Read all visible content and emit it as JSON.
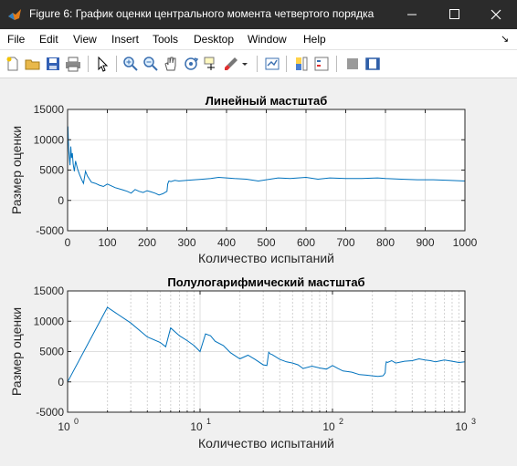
{
  "window": {
    "title": "Figure 6: График оценки центрального момента четвертого порядка",
    "controls": [
      "minimize",
      "maximize",
      "close"
    ]
  },
  "menu": {
    "items": [
      {
        "label": "File"
      },
      {
        "label": "Edit"
      },
      {
        "label": "View"
      },
      {
        "label": "Insert"
      },
      {
        "label": "Tools"
      },
      {
        "label": "Desktop"
      },
      {
        "label": "Window"
      },
      {
        "label": "Help"
      }
    ],
    "dock_arrow": "↘"
  },
  "toolbar": {
    "icons": [
      "new-figure-icon",
      "open-folder-icon",
      "save-icon",
      "print-icon",
      "pointer-icon",
      "zoom-in-icon",
      "zoom-out-icon",
      "pan-hand-icon",
      "rotate-3d-icon",
      "data-cursor-icon",
      "brush-icon",
      "brush-dropdown-icon",
      "link-plot-icon",
      "colorbar-icon",
      "legend-icon",
      "hide-plot-tools-icon",
      "show-plot-tools-icon"
    ]
  },
  "colors": {
    "line": "#0072bd",
    "grid": "#dfdfdf",
    "axes_bg": "#ffffff",
    "figure_bg": "#f0f0f0"
  },
  "chart_data": [
    {
      "type": "line",
      "title": "Линейный мастштаб",
      "xlabel": "Количество испытаний",
      "ylabel": "Размер оценки",
      "xlim": [
        0,
        1000
      ],
      "ylim": [
        -5000,
        15000
      ],
      "xticks": [
        0,
        100,
        200,
        300,
        400,
        500,
        600,
        700,
        800,
        900,
        1000
      ],
      "yticks": [
        -5000,
        0,
        5000,
        10000,
        15000
      ],
      "xscale": "linear",
      "grid": true,
      "series": [
        {
          "x": [
            1,
            2,
            3,
            4,
            5,
            6,
            8,
            10,
            12,
            14,
            17,
            20,
            25,
            30,
            35,
            40,
            45,
            50,
            60,
            70,
            80,
            90,
            100,
            120,
            140,
            150,
            160,
            170,
            180,
            190,
            200,
            210,
            220,
            230,
            240,
            245,
            250,
            252,
            255,
            260,
            270,
            280,
            300,
            320,
            340,
            360,
            380,
            400,
            420,
            450,
            480,
            500,
            530,
            560,
            600,
            630,
            660,
            700,
            740,
            780,
            800,
            840,
            880,
            920,
            960,
            1000
          ],
          "y": [
            12200,
            9700,
            8100,
            7500,
            6500,
            5800,
            8900,
            7000,
            7800,
            6000,
            4800,
            6500,
            5200,
            4300,
            3500,
            2800,
            4800,
            4000,
            3000,
            2800,
            2500,
            2300,
            2700,
            2100,
            1700,
            1500,
            1200,
            1800,
            1500,
            1300,
            1600,
            1400,
            1200,
            900,
            1100,
            1300,
            1500,
            2700,
            3200,
            3100,
            3300,
            3200,
            3300,
            3400,
            3500,
            3600,
            3800,
            3700,
            3600,
            3500,
            3200,
            3400,
            3700,
            3600,
            3800,
            3500,
            3700,
            3600,
            3600,
            3700,
            3600,
            3500,
            3400,
            3400,
            3300,
            3200
          ]
        }
      ]
    },
    {
      "type": "line",
      "title": "Полулогарифмический мастштаб",
      "xlabel": "Количество испытаний",
      "ylabel": "Размер оценки",
      "xlim": [
        1,
        1000
      ],
      "ylim": [
        -5000,
        15000
      ],
      "xticks": [
        1,
        10,
        100,
        1000
      ],
      "xticklabels": [
        {
          "base": "10",
          "exp": "0"
        },
        {
          "base": "10",
          "exp": "1"
        },
        {
          "base": "10",
          "exp": "2"
        },
        {
          "base": "10",
          "exp": "3"
        }
      ],
      "yticks": [
        -5000,
        0,
        5000,
        10000,
        15000
      ],
      "xscale": "log",
      "grid": true,
      "series": [
        {
          "x": [
            1,
            2,
            3,
            4,
            5,
            5.5,
            6,
            7,
            8,
            9,
            10,
            11,
            12,
            13,
            15,
            17,
            20,
            23,
            26,
            30,
            32,
            33,
            34,
            35,
            40,
            45,
            50,
            55,
            60,
            70,
            80,
            90,
            100,
            110,
            120,
            140,
            160,
            180,
            200,
            220,
            240,
            245,
            250,
            252,
            255,
            260,
            280,
            300,
            350,
            400,
            450,
            500,
            550,
            600,
            700,
            800,
            900,
            1000
          ],
          "y": [
            0,
            12300,
            9700,
            7400,
            6500,
            5800,
            8900,
            7600,
            6800,
            6000,
            5000,
            7900,
            7600,
            6700,
            6000,
            4800,
            3800,
            4400,
            3700,
            2800,
            2700,
            4900,
            4600,
            4500,
            3700,
            3300,
            3100,
            2800,
            2200,
            2600,
            2300,
            2100,
            2700,
            2200,
            1800,
            1600,
            1200,
            1100,
            1000,
            900,
            1000,
            1200,
            1500,
            2700,
            3300,
            3200,
            3500,
            3100,
            3400,
            3500,
            3800,
            3600,
            3500,
            3300,
            3600,
            3400,
            3200,
            3300
          ]
        }
      ]
    }
  ]
}
